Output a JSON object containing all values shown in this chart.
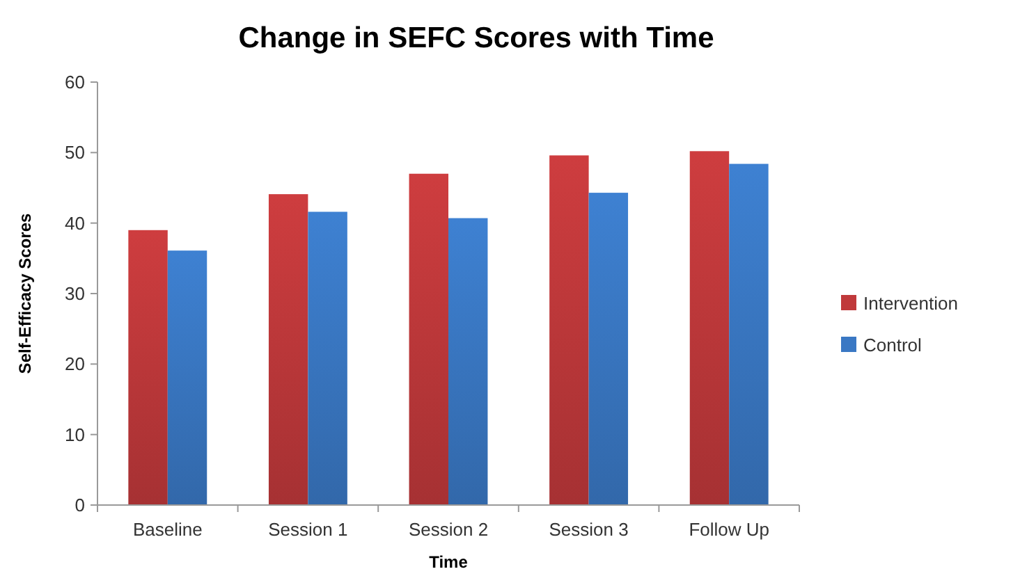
{
  "chart_data": {
    "type": "bar",
    "title": "Change in SEFC Scores with Time",
    "xlabel": "Time",
    "ylabel": "Self-Efficacy Scores",
    "categories": [
      "Baseline",
      "Session 1",
      "Session 2",
      "Session 3",
      "Follow Up"
    ],
    "series": [
      {
        "name": "Intervention",
        "color": "#c0393b",
        "values": [
          39,
          44.1,
          47,
          49.6,
          50.2
        ]
      },
      {
        "name": "Control",
        "color": "#3a78c4",
        "values": [
          36.1,
          41.6,
          40.7,
          44.3,
          48.4
        ]
      }
    ],
    "ylim": [
      0,
      60
    ],
    "yticks": [
      0,
      10,
      20,
      30,
      40,
      50,
      60
    ],
    "grid": false,
    "legend": "right"
  }
}
